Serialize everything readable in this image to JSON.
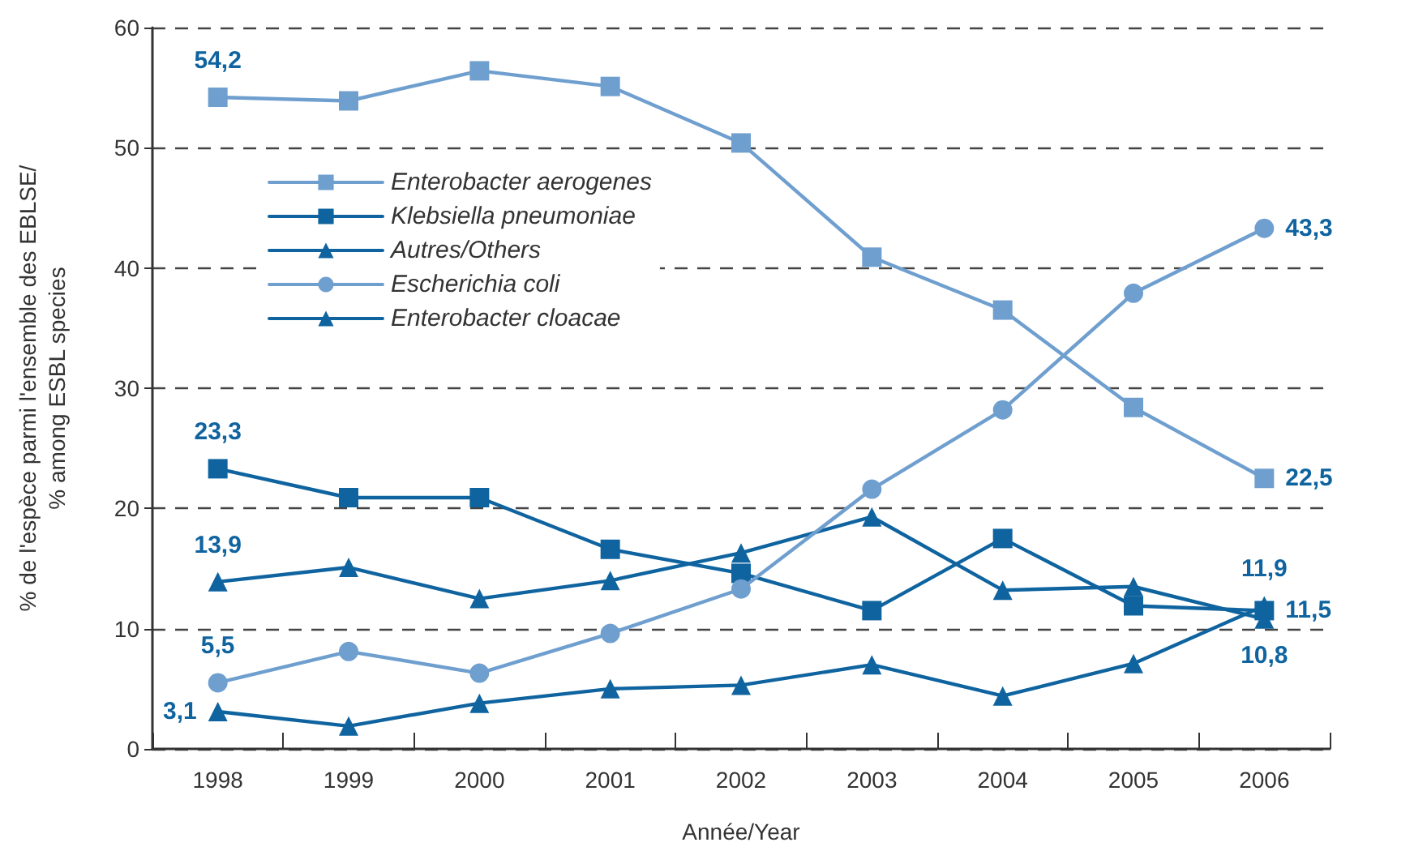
{
  "chart_data": {
    "type": "line",
    "xlabel": "Année/Year",
    "ylabel": "% de l'espèce parmi l'ensemble des EBLSE/\n% among ESBL species",
    "categories": [
      "1998",
      "1999",
      "2000",
      "2001",
      "2002",
      "2003",
      "2004",
      "2005",
      "2006"
    ],
    "series": [
      {
        "name": "Enterobacter aerogenes",
        "color": "#6f9fcf",
        "marker": "square",
        "values": [
          54.2,
          53.9,
          56.4,
          55.1,
          50.4,
          40.9,
          36.5,
          28.4,
          22.5
        ],
        "value_labels": [
          "54,2",
          null,
          null,
          null,
          null,
          null,
          null,
          null,
          "22,5"
        ]
      },
      {
        "name": "Klebsiella pneumoniae",
        "color": "#0f64a0",
        "marker": "square",
        "values": [
          23.3,
          20.9,
          20.9,
          16.6,
          14.6,
          11.5,
          17.5,
          11.9,
          11.5
        ],
        "value_labels": [
          "23,3",
          null,
          null,
          null,
          null,
          null,
          null,
          null,
          "11,5"
        ]
      },
      {
        "name": "Autres/Others",
        "color": "#0f64a0",
        "marker": "triangle",
        "values": [
          13.9,
          15.1,
          12.5,
          14.0,
          16.3,
          19.3,
          13.2,
          13.5,
          10.8
        ],
        "value_labels": [
          "13,9",
          null,
          null,
          null,
          null,
          null,
          null,
          null,
          "10,8"
        ]
      },
      {
        "name": "Escherichia coli",
        "color": "#6f9fcf",
        "marker": "circle",
        "values": [
          5.5,
          8.1,
          6.3,
          9.6,
          13.3,
          21.6,
          28.2,
          37.9,
          43.3
        ],
        "value_labels": [
          "5,5",
          null,
          null,
          null,
          null,
          null,
          null,
          null,
          "43,3"
        ]
      },
      {
        "name": "Enterobacter cloacae",
        "color": "#0f64a0",
        "marker": "triangle",
        "values": [
          3.1,
          1.9,
          3.8,
          5.0,
          5.3,
          7.0,
          4.4,
          7.1,
          11.9
        ],
        "value_labels": [
          "3,1",
          null,
          null,
          null,
          null,
          null,
          null,
          null,
          "11,9"
        ]
      }
    ],
    "ylim": [
      0,
      60
    ],
    "yticks": [
      0,
      10,
      20,
      30,
      40,
      50,
      60
    ],
    "grid": "y",
    "legend": "top left",
    "line_style": "solid"
  }
}
